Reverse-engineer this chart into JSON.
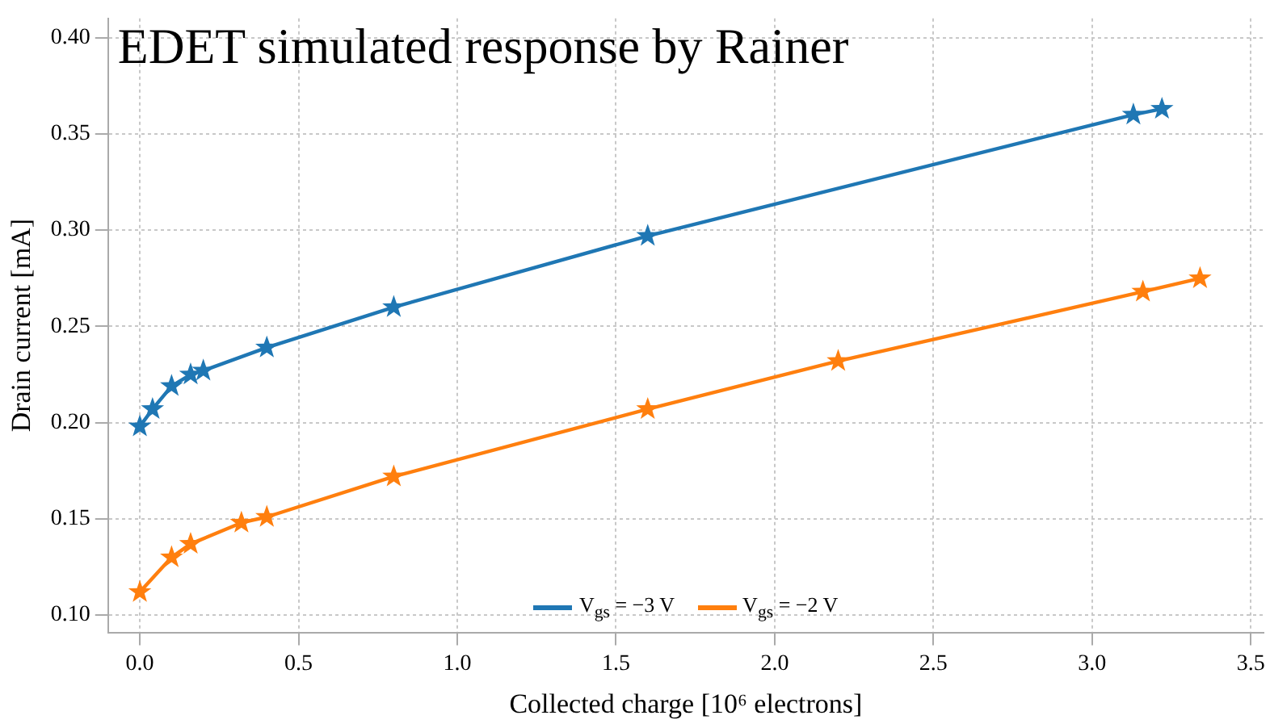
{
  "chart_data": {
    "type": "line",
    "title": "EDET simulated response by Rainer",
    "xlabel": "Collected charge [10⁶ electrons]",
    "ylabel": "Drain current [mA]",
    "xlim": [
      -0.1,
      3.54
    ],
    "xticks": [
      {
        "value": 0,
        "label": "0.0"
      },
      0.5,
      {
        "value": 1,
        "label": "1.0"
      },
      1.5,
      {
        "value": 2,
        "label": "2.0"
      },
      2.5,
      {
        "value": 3,
        "label": "3.0"
      },
      3.5
    ],
    "ylim": [
      0.091,
      0.41
    ],
    "yticks": [
      {
        "value": 0.1,
        "label": "0.10"
      },
      0.15,
      {
        "value": 0.2,
        "label": "0.20"
      },
      0.25,
      {
        "value": 0.3,
        "label": "0.30"
      },
      0.35,
      {
        "value": 0.4,
        "label": "0.40"
      }
    ],
    "grid": true,
    "legend": "bottom",
    "marker": "star",
    "line_style": "solid",
    "series": [
      {
        "name": "V$_{gs}$ = −3 V",
        "color": "#1f77b4",
        "x": [
          0,
          0.04,
          0.1,
          0.16,
          0.2,
          0.4,
          0.8,
          1.6,
          3.13,
          3.22
        ],
        "values": [
          0.198,
          0.207,
          0.219,
          0.225,
          0.227,
          0.239,
          0.26,
          0.297,
          0.36,
          0.363
        ]
      },
      {
        "name": "V$_{gs}$ = −2 V",
        "color": "#ff7f0e",
        "x": [
          0,
          0.1,
          0.16,
          0.32,
          0.4,
          0.8,
          1.6,
          2.2,
          3.16,
          3.34
        ],
        "values": [
          0.112,
          0.13,
          0.137,
          0.148,
          0.151,
          0.172,
          0.207,
          0.232,
          0.268,
          0.275
        ]
      }
    ]
  }
}
